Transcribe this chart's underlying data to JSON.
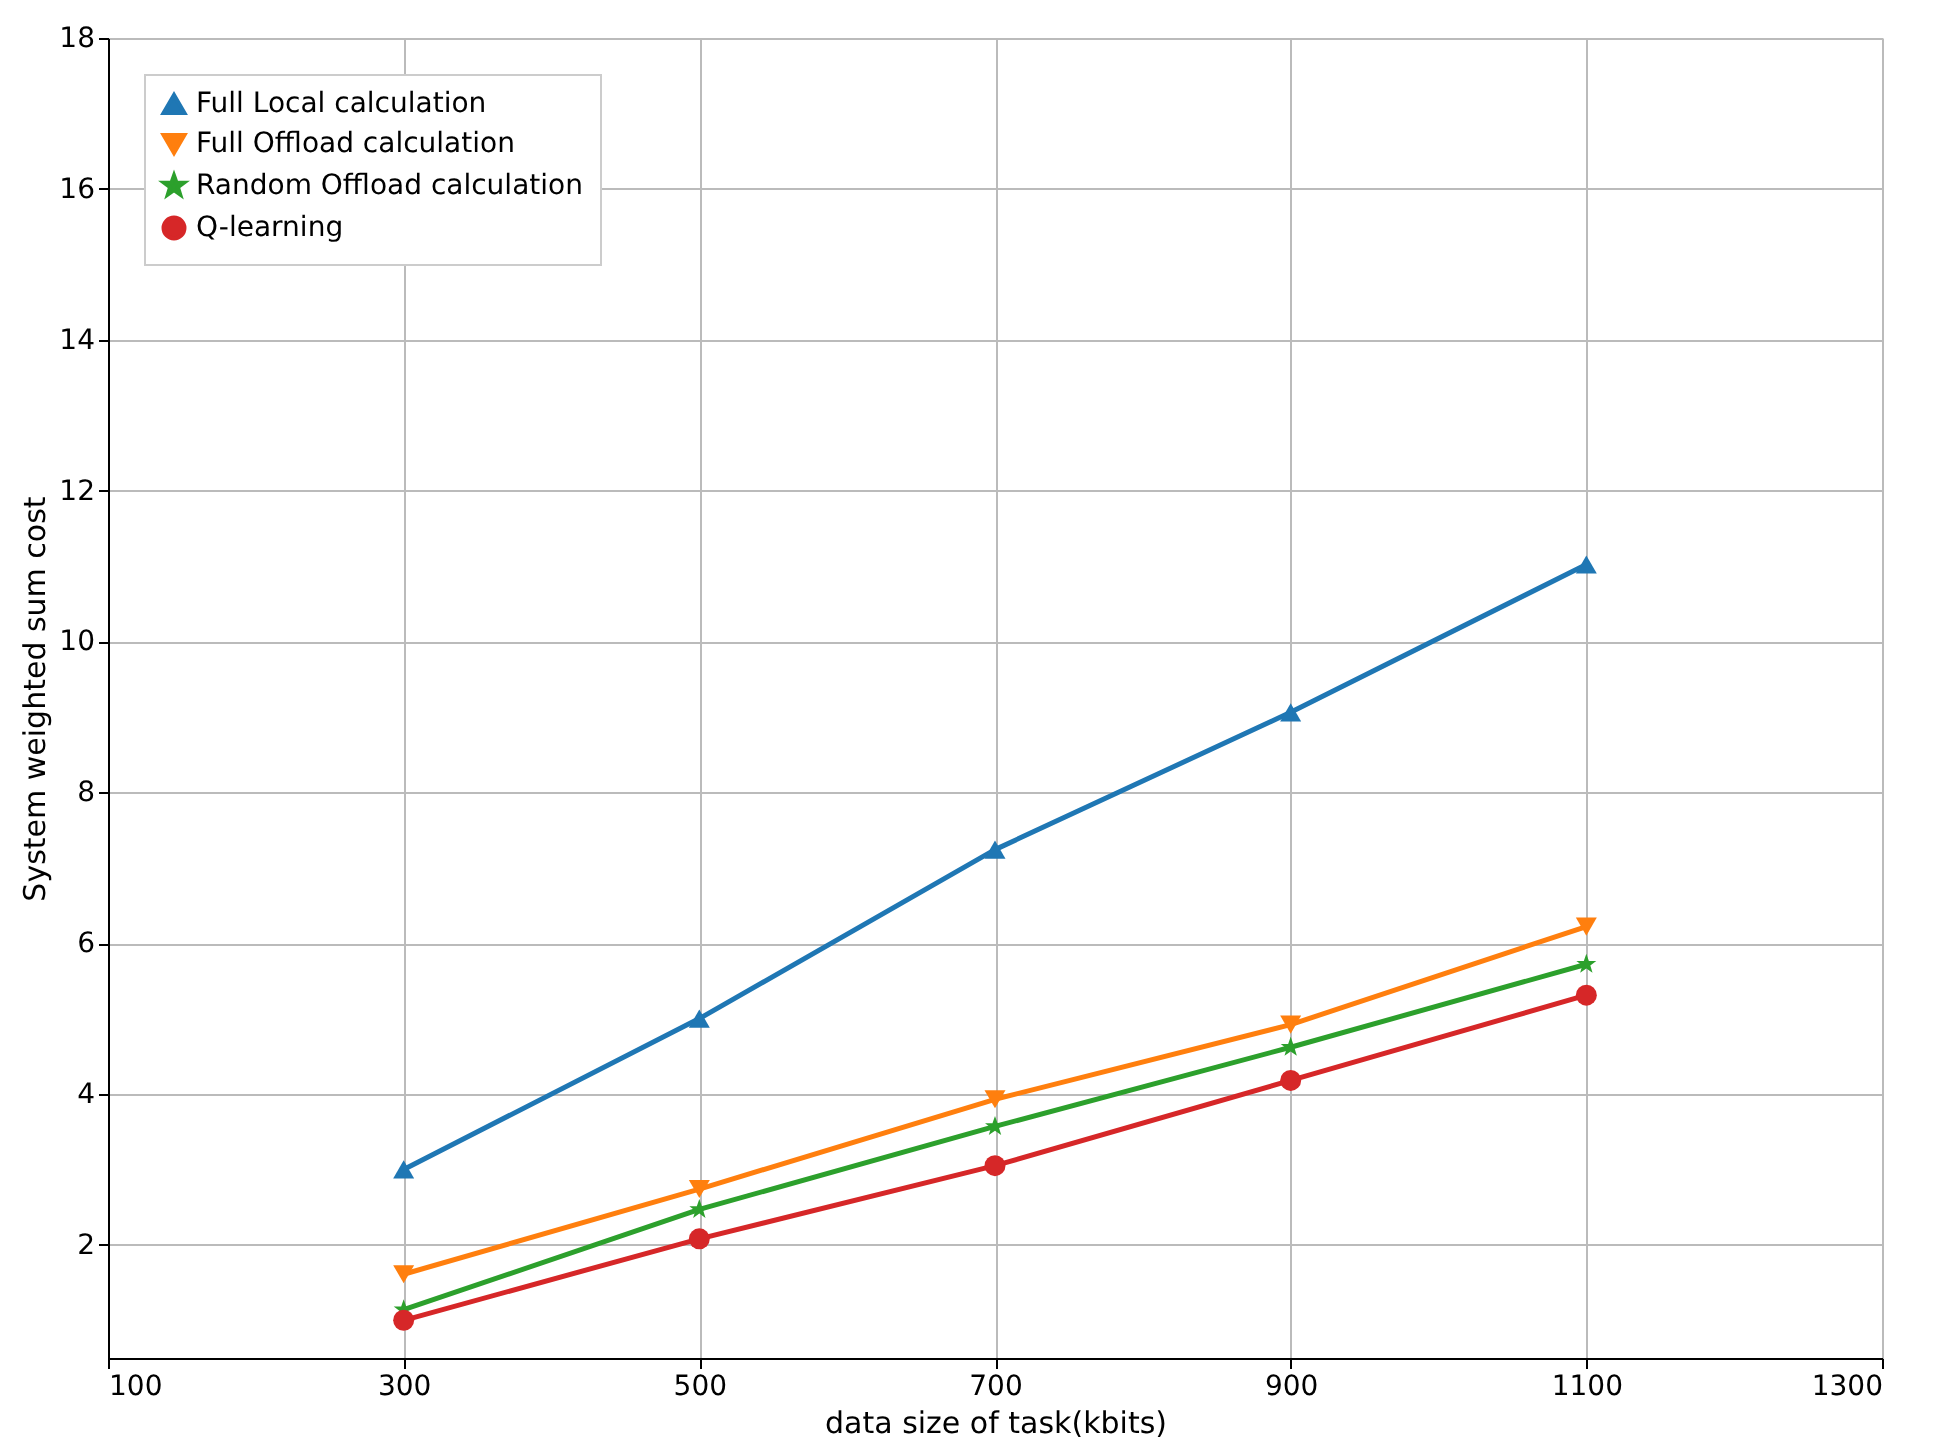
{
  "chart_data": {
    "type": "line",
    "xlabel": "data size of task(kbits)",
    "ylabel": "System weighted sum cost",
    "x": [
      300,
      500,
      700,
      900,
      1100
    ],
    "series": [
      {
        "name": "Full Local calculation",
        "color": "#1f77b4",
        "marker": "triangle",
        "values": [
          3.0,
          5.0,
          7.24,
          9.06,
          11.02
        ]
      },
      {
        "name": "Full Offload calculation",
        "color": "#ff7f0e",
        "marker": "triangle-down",
        "values": [
          1.61,
          2.74,
          3.93,
          4.92,
          6.22
        ]
      },
      {
        "name": "Random Offload calculation",
        "color": "#2ca02c",
        "marker": "star",
        "values": [
          1.14,
          2.47,
          3.57,
          4.62,
          5.72
        ]
      },
      {
        "name": "Q-learning",
        "color": "#d62728",
        "marker": "circle",
        "values": [
          1.0,
          2.08,
          3.05,
          4.18,
          5.31
        ]
      }
    ],
    "xlim": [
      100,
      1300
    ],
    "xticks": [
      100,
      300,
      500,
      700,
      900,
      1100,
      1300
    ],
    "ylim": [
      0.5,
      18
    ],
    "yticks": [
      2,
      4,
      6,
      8,
      10,
      12,
      14,
      16,
      18
    ],
    "grid": true,
    "legend": "top left",
    "line_style": "solid"
  }
}
